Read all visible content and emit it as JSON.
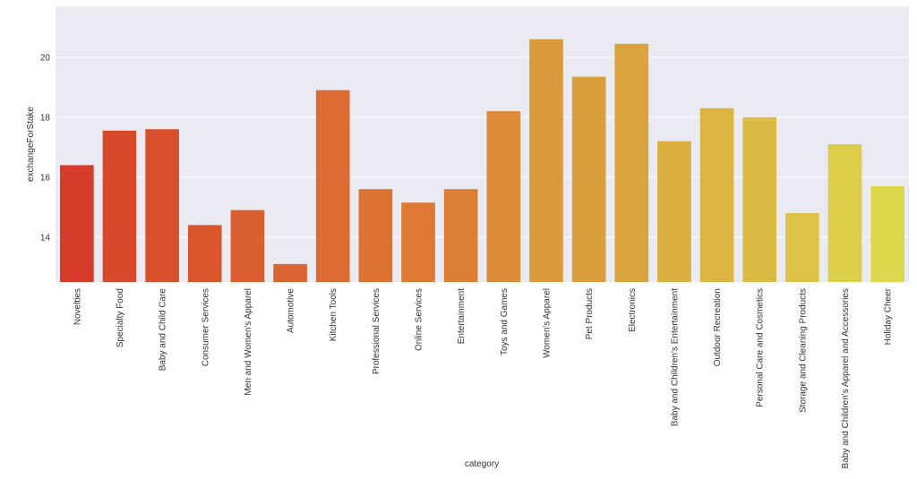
{
  "chart_data": {
    "type": "bar",
    "title": "",
    "xlabel": "category",
    "ylabel": "exchangeForStake",
    "ylim": [
      12.5,
      21.7
    ],
    "yticks": [
      14,
      16,
      18,
      20
    ],
    "grid": true,
    "background": "#eaeaf2",
    "categories": [
      "Novelties",
      "Specialty Food",
      "Baby and Child Care",
      "Consumer Services",
      "Men and Women's Apparel",
      "Automotive",
      "Kitchen Tools",
      "Professional Services",
      "Online Services",
      "Entertainment",
      "Toys and Games",
      "Women's Apparel",
      "Pet Products",
      "Electronics",
      "Baby and Children's Entertainment",
      "Outdoor Recreation",
      "Personal Care and Cosmetics",
      "Storage and Cleaning Products",
      "Baby and Children's Apparel and Accessories",
      "Holiday Cheer"
    ],
    "values": [
      16.4,
      17.55,
      17.6,
      14.4,
      14.9,
      13.1,
      18.9,
      15.6,
      15.15,
      15.6,
      18.2,
      20.6,
      19.35,
      20.45,
      17.2,
      18.3,
      18.0,
      14.8,
      17.1,
      15.7
    ],
    "colors": [
      "#d73b2a",
      "#d84a2b",
      "#d9512c",
      "#da572e",
      "#da5f30",
      "#db6532",
      "#dc6a33",
      "#dc7234",
      "#dd7835",
      "#dd7e36",
      "#dc8b38",
      "#da993b",
      "#d99f3c",
      "#d9a43d",
      "#daaf3f",
      "#dbb441",
      "#dbbb43",
      "#dcc246",
      "#dcce49",
      "#dcd74c"
    ]
  }
}
